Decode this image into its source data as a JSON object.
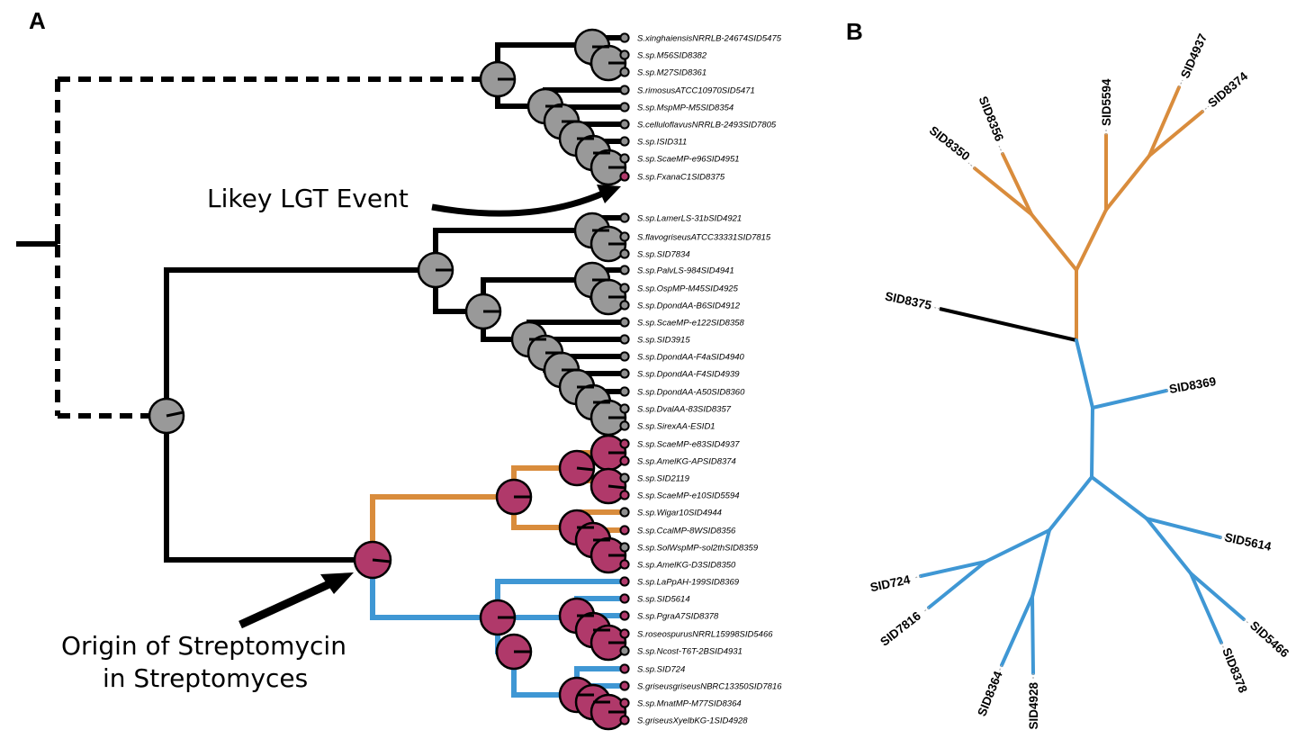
{
  "panels": {
    "a": "A",
    "b": "B"
  },
  "colors": {
    "ancestral": "#b0396a",
    "ancestral_gray": "#999999",
    "orange": "#d98c3c",
    "blue": "#3f97d4",
    "black": "#000000",
    "tip_dot_gray": "#8e8e8e"
  },
  "annotations": {
    "lgt": "Likey LGT Event",
    "origin_line1": "Origin of Streptomycin",
    "origin_line2": "in Streptomyces"
  },
  "panel_a_tips": [
    {
      "label": "S.xinghaiensisNRRLB-24674SID5475",
      "state": "gray"
    },
    {
      "label": "S.sp.M56SID8382",
      "state": "gray"
    },
    {
      "label": "S.sp.M27SID8361",
      "state": "gray"
    },
    {
      "label": "S.rimosusATCC10970SID5471",
      "state": "gray"
    },
    {
      "label": "S.sp.MspMP-M5SID8354",
      "state": "gray"
    },
    {
      "label": "S.celluloflavusNRRLB-2493SID7805",
      "state": "gray"
    },
    {
      "label": "S.sp.ISID311",
      "state": "gray"
    },
    {
      "label": "S.sp.ScaeMP-e96SID4951",
      "state": "gray"
    },
    {
      "label": "S.sp.FxanaC1SID8375",
      "state": "red"
    },
    {
      "label": "S.sp.LamerLS-31bSID4921",
      "state": "gray"
    },
    {
      "label": "S.flavogriseusATCC33331SID7815",
      "state": "gray"
    },
    {
      "label": "S.sp.SID7834",
      "state": "gray"
    },
    {
      "label": "S.sp.PalvLS-984SID4941",
      "state": "gray"
    },
    {
      "label": "S.sp.OspMP-M45SID4925",
      "state": "gray"
    },
    {
      "label": "S.sp.DpondAA-B6SID4912",
      "state": "gray"
    },
    {
      "label": "S.sp.ScaeMP-e122SID8358",
      "state": "gray"
    },
    {
      "label": "S.sp.SID3915",
      "state": "gray"
    },
    {
      "label": "S.sp.DpondAA-F4aSID4940",
      "state": "gray"
    },
    {
      "label": "S.sp.DpondAA-F4SID4939",
      "state": "gray"
    },
    {
      "label": "S.sp.DpondAA-A50SID8360",
      "state": "gray"
    },
    {
      "label": "S.sp.DvalAA-83SID8357",
      "state": "gray"
    },
    {
      "label": "S.sp.SirexAA-ESID1",
      "state": "gray"
    },
    {
      "label": "S.sp.ScaeMP-e83SID4937",
      "state": "red"
    },
    {
      "label": "S.sp.AmelKG-APSID8374",
      "state": "red"
    },
    {
      "label": "S.sp.SID2119",
      "state": "gray"
    },
    {
      "label": "S.sp.ScaeMP-e10SID5594",
      "state": "red"
    },
    {
      "label": "S.sp.Wigar10SID4944",
      "state": "gray"
    },
    {
      "label": "S.sp.CcalMP-8WSID8356",
      "state": "red"
    },
    {
      "label": "S.sp.SolWspMP-sol2thSID8359",
      "state": "gray"
    },
    {
      "label": "S.sp.AmelKG-D3SID8350",
      "state": "red"
    },
    {
      "label": "S.sp.LaPpAH-199SID8369",
      "state": "red"
    },
    {
      "label": "S.sp.SID5614",
      "state": "red"
    },
    {
      "label": "S.sp.PgraA7SID8378",
      "state": "red"
    },
    {
      "label": "S.roseospurusNRRL15998SID5466",
      "state": "red"
    },
    {
      "label": "S.sp.Ncost-T6T-2BSID4931",
      "state": "gray"
    },
    {
      "label": "S.sp.SID724",
      "state": "red"
    },
    {
      "label": "S.griseusgriseusNBRC13350SID7816",
      "state": "red"
    },
    {
      "label": "S.sp.MnatMP-M77SID8364",
      "state": "red"
    },
    {
      "label": "S.griseusXyelbKG-1SID4928",
      "state": "red"
    }
  ],
  "panel_b_labels": [
    "SID8356",
    "SID8350",
    "SID5594",
    "SID4937",
    "SID8374",
    "SID8375",
    "SID8369",
    "SID5614",
    "SID724",
    "SID7816",
    "SID5466",
    "SID8378",
    "SID8364",
    "SID4928"
  ]
}
